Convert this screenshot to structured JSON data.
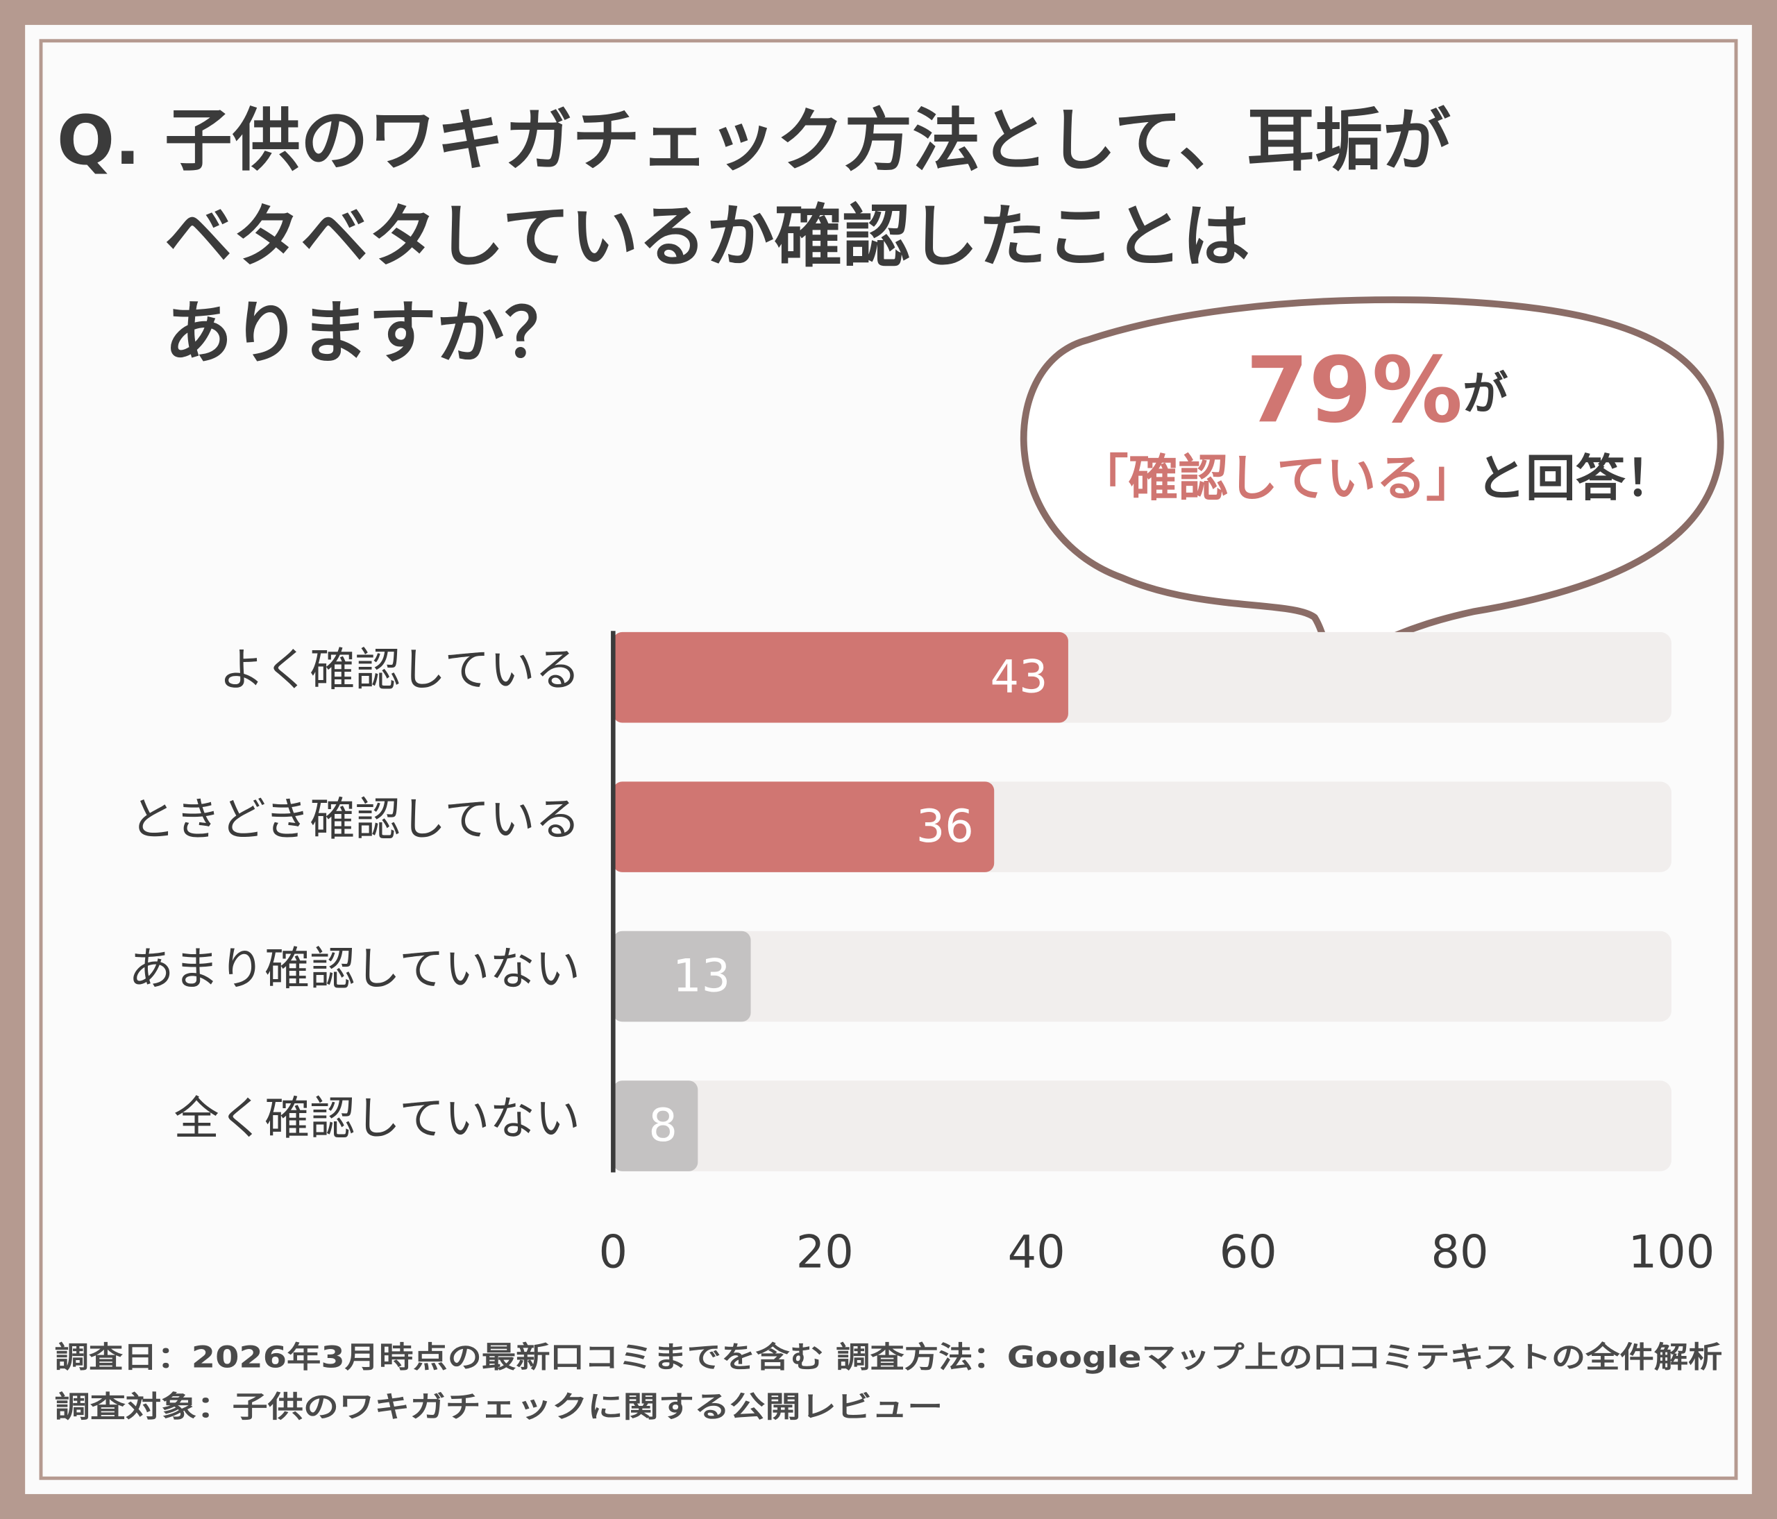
{
  "chart_data": {
    "type": "hbar",
    "question_prefix": "Q.",
    "title_lines": [
      "子供のワキガチェック方法として、耳垢が",
      "ベタベタしているか確認したことは",
      "ありますか？"
    ],
    "callout": {
      "highlight": "79%",
      "highlight_suffix": "が",
      "quote": "「確認している」",
      "quote_suffix": "と回答！"
    },
    "categories": [
      "よく確認している",
      "ときどき確認している",
      "あまり確認していない",
      "全く確認していない"
    ],
    "values": [
      43,
      36,
      13,
      8
    ],
    "colors": [
      "#d07672",
      "#d07672",
      "#c4c2c2",
      "#c4c2c2"
    ],
    "track_color": "#f1eeed",
    "xlim": [
      0,
      100
    ],
    "xticks": [
      0,
      20,
      40,
      60,
      80,
      100
    ],
    "footnotes": [
      "調査日：2026年3月時点の最新口コミまでを含む 調査方法：Googleマップ上の口コミテキストの全件解析",
      "調査対象：子供のワキガチェックに関する公開レビュー"
    ]
  }
}
